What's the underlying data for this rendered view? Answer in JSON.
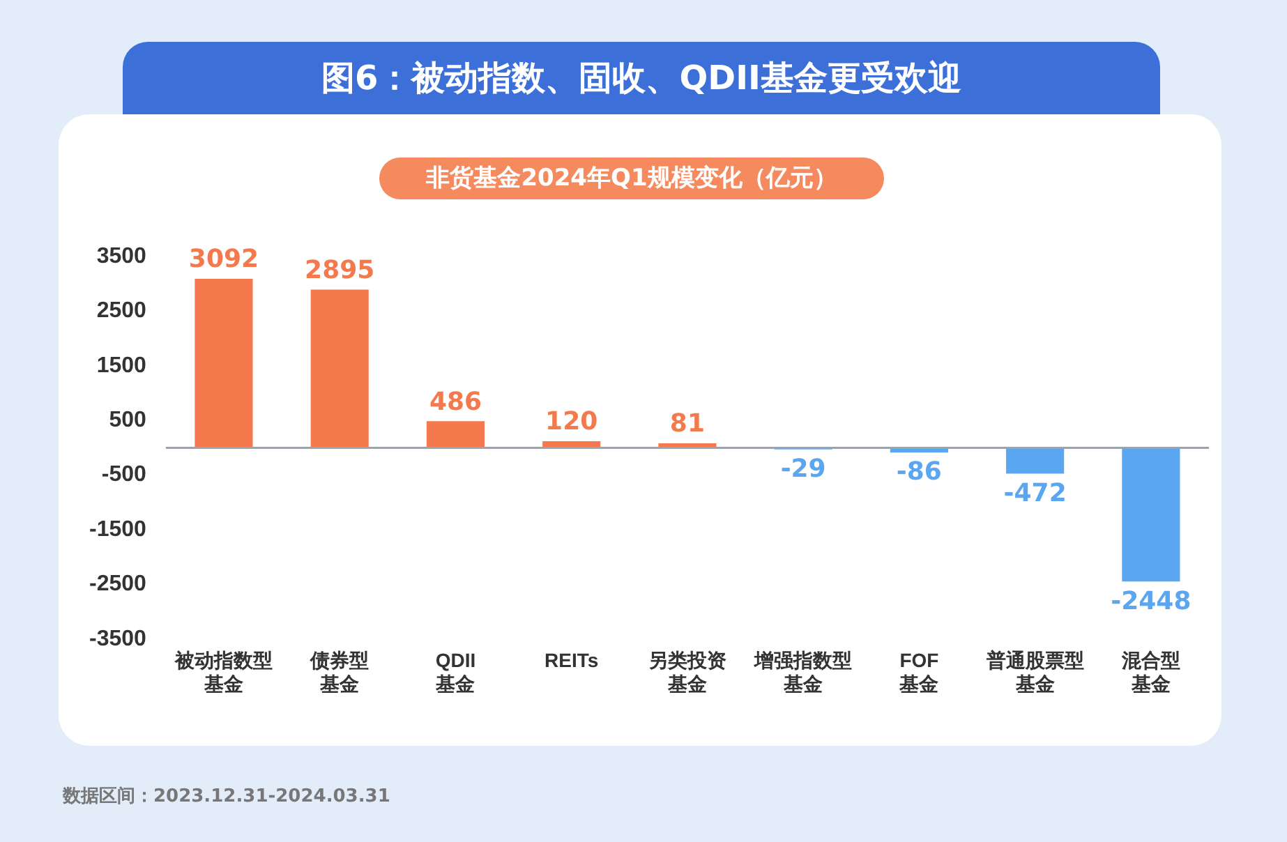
{
  "chart_data": {
    "type": "bar",
    "title": "图6：被动指数、固收、QDII基金更受欢迎",
    "subtitle": "非货基金2024年Q1规模变化（亿元）",
    "categories": [
      "被动指数型基金",
      "债券型基金",
      "QDII基金",
      "REITs",
      "另类投资基金",
      "增强指数型基金",
      "FOF基金",
      "普通股票型基金",
      "混合型基金"
    ],
    "values": [
      3092,
      2895,
      486,
      120,
      81,
      -29,
      -86,
      -472,
      -2448
    ],
    "colors": [
      "#f47a4e",
      "#f47a4e",
      "#f47a4e",
      "#f47a4e",
      "#f47a4e",
      "#5aa6f0",
      "#5aa6f0",
      "#5aa6f0",
      "#5aa6f0"
    ],
    "ylim": [
      -3500,
      3500
    ],
    "yticks": [
      3500,
      2500,
      1500,
      500,
      -500,
      -1500,
      -2500,
      -3500
    ],
    "grid": false,
    "legend": false,
    "data_labels": true,
    "annotations": [
      "数据区间：2023.12.31-2024.03.31"
    ]
  }
}
